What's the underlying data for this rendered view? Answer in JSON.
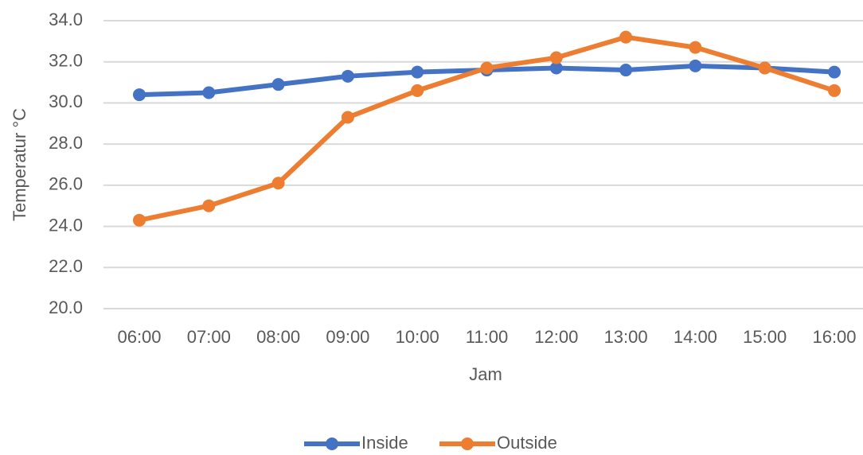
{
  "chart_data": {
    "type": "line",
    "x_label": "Jam",
    "y_label": "Temperatur °C",
    "categories": [
      "06:00",
      "07:00",
      "08:00",
      "09:00",
      "10:00",
      "11:00",
      "12:00",
      "13:00",
      "14:00",
      "15:00",
      "16:00"
    ],
    "series": [
      {
        "name": "Inside",
        "color": "#4472c4",
        "values": [
          30.4,
          30.5,
          30.9,
          31.3,
          31.5,
          31.6,
          31.7,
          31.6,
          31.8,
          31.7,
          31.5
        ]
      },
      {
        "name": "Outside",
        "color": "#ed7d31",
        "values": [
          24.3,
          25.0,
          26.1,
          29.3,
          30.6,
          31.7,
          32.2,
          33.2,
          32.7,
          31.7,
          30.6
        ]
      }
    ],
    "ylim": [
      20,
      34
    ],
    "yticks": [
      {
        "value": 20,
        "label": "20.0"
      },
      {
        "value": 22,
        "label": "22.0"
      },
      {
        "value": 24,
        "label": "24.0"
      },
      {
        "value": 26,
        "label": "26.0"
      },
      {
        "value": 28,
        "label": "28.0"
      },
      {
        "value": 30,
        "label": "30.0"
      },
      {
        "value": 32,
        "label": "32.0"
      },
      {
        "value": 34,
        "label": "34.0"
      }
    ],
    "grid": true,
    "legend": "bottom"
  }
}
